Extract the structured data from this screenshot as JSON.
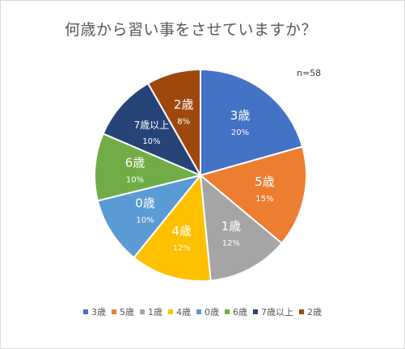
{
  "colors": {
    "3歳": "#4472c4",
    "5歳": "#ed7d31",
    "1歳": "#a5a5a5",
    "4歳": "#ffc000",
    "0歳": "#5b9bd5",
    "6歳": "#70ad47",
    "7歳以上": "#264478",
    "2歳": "#9e480e"
  },
  "chart_data": {
    "type": "pie",
    "title": "何歳から習い事をさせていますか？",
    "annotation": "n=58",
    "legend_position": "bottom",
    "slices": [
      {
        "label": "3歳",
        "value": 20,
        "value_label": "20%"
      },
      {
        "label": "5歳",
        "value": 15,
        "value_label": "15%"
      },
      {
        "label": "1歳",
        "value": 12,
        "value_label": "12%"
      },
      {
        "label": "4歳",
        "value": 12,
        "value_label": "12%"
      },
      {
        "label": "0歳",
        "value": 10,
        "value_label": "10%"
      },
      {
        "label": "6歳",
        "value": 10,
        "value_label": "10%"
      },
      {
        "label": "7歳以上",
        "value": 10,
        "value_label": "10%"
      },
      {
        "label": "2歳",
        "value": 8,
        "value_label": "8%"
      }
    ]
  }
}
